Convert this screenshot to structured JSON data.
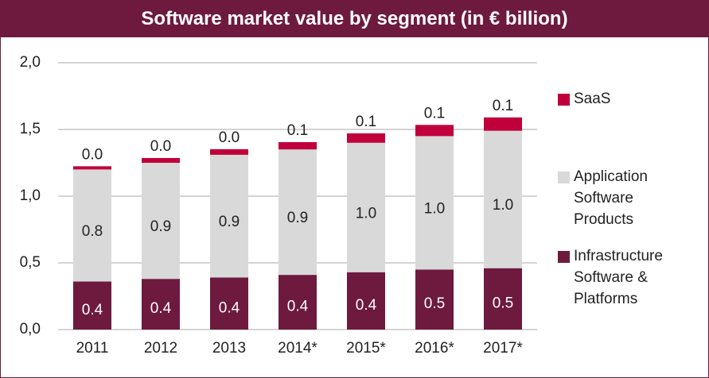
{
  "chart_data": {
    "type": "stacked_bar",
    "title": "Software market value by segment (in € billion)",
    "categories": [
      "2011",
      "2012",
      "2013",
      "2014*",
      "2015*",
      "2016*",
      "2017*"
    ],
    "series": [
      {
        "name": "Infrastructure Software & Platforms",
        "color": "#6d1a3e",
        "values": [
          0.36,
          0.38,
          0.39,
          0.41,
          0.43,
          0.45,
          0.46
        ],
        "value_labels": [
          "0.4",
          "0.4",
          "0.4",
          "0.4",
          "0.4",
          "0.5",
          "0.5"
        ]
      },
      {
        "name": "Application Software Products",
        "color": "#d9d9d9",
        "values": [
          0.84,
          0.87,
          0.92,
          0.94,
          0.97,
          1.0,
          1.03
        ],
        "value_labels": [
          "0.8",
          "0.9",
          "0.9",
          "0.9",
          "1.0",
          "1.0",
          "1.0"
        ]
      },
      {
        "name": "SaaS",
        "color": "#c0003c",
        "values": [
          0.024,
          0.036,
          0.042,
          0.055,
          0.071,
          0.084,
          0.1
        ],
        "value_labels": [
          "0.0",
          "0.0",
          "0.0",
          "0.1",
          "0.1",
          "0.1",
          "0.1"
        ]
      }
    ],
    "ylim": [
      0,
      2
    ],
    "yticks": [
      {
        "value": 0,
        "label": "0,0"
      },
      {
        "value": 0.5,
        "label": "0,5"
      },
      {
        "value": 1,
        "label": "1,0"
      },
      {
        "value": 1.5,
        "label": "1,5"
      },
      {
        "value": 2,
        "label": "2,0"
      }
    ],
    "grid": true
  }
}
